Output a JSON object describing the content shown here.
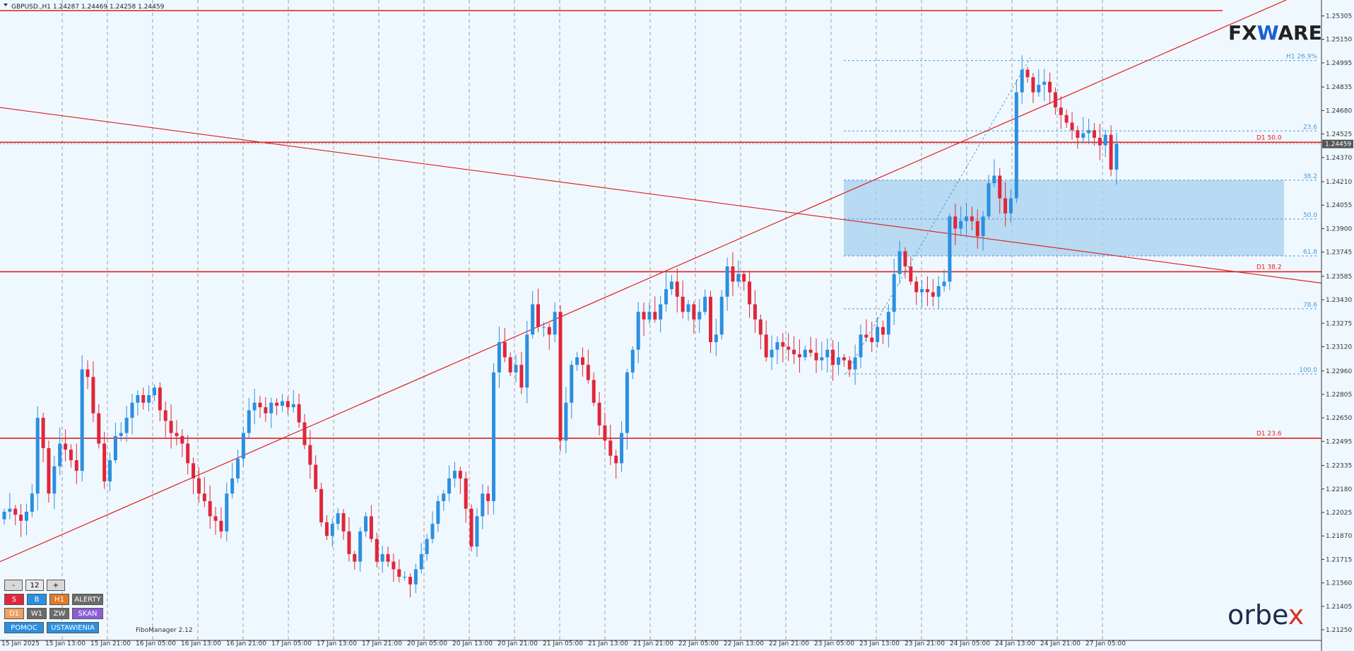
{
  "header": {
    "symbol_info": "GBPUSD.,H1  1.24287 1.24469 1.24258 1.24459"
  },
  "colors": {
    "bull": "#2b8fe0",
    "bear": "#e0263a",
    "line": "#e11d1d",
    "fib": "#4a9bd6",
    "zone": "#a6d0ee",
    "grid": "#8a8a8a",
    "bg": "#f0f8ff"
  },
  "chart_data": {
    "type": "candlestick",
    "price_axis": [
      "1.25305",
      "1.25150",
      "1.24995",
      "1.24835",
      "1.24680",
      "1.24525",
      "1.24370",
      "1.24210",
      "1.24055",
      "1.23900",
      "1.23745",
      "1.23585",
      "1.23430",
      "1.23275",
      "1.23120",
      "1.22960",
      "1.22805",
      "1.22650",
      "1.22495",
      "1.22335",
      "1.22180",
      "1.22025",
      "1.21870",
      "1.21715",
      "1.21560",
      "1.21405",
      "1.21250"
    ],
    "time_axis": [
      "15 Jan 2025",
      "15 Jan 13:00",
      "15 Jan 21:00",
      "16 Jan 05:00",
      "16 Jan 13:00",
      "16 Jan 21:00",
      "17 Jan 05:00",
      "17 Jan 13:00",
      "17 Jan 21:00",
      "20 Jan 05:00",
      "20 Jan 13:00",
      "20 Jan 21:00",
      "21 Jan 05:00",
      "21 Jan 13:00",
      "21 Jan 21:00",
      "22 Jan 05:00",
      "22 Jan 13:00",
      "22 Jan 21:00",
      "23 Jan 05:00",
      "23 Jan 13:00",
      "23 Jan 21:00",
      "24 Jan 05:00",
      "24 Jan 13:00",
      "24 Jan 21:00",
      "27 Jan 05:00"
    ],
    "current_price": "1.24459",
    "ylim": [
      1.2118,
      1.2541
    ],
    "closes": [
      1.2203,
      1.2205,
      1.2201,
      1.2197,
      1.2203,
      1.2215,
      1.2265,
      1.2245,
      1.2215,
      1.2233,
      1.2248,
      1.2244,
      1.2237,
      1.223,
      1.2297,
      1.2292,
      1.2268,
      1.2248,
      1.2223,
      1.2237,
      1.2253,
      1.2255,
      1.2265,
      1.2275,
      1.228,
      1.2275,
      1.228,
      1.2285,
      1.227,
      1.2263,
      1.2255,
      1.2253,
      1.2248,
      1.2235,
      1.2225,
      1.2215,
      1.221,
      1.22,
      1.2197,
      1.219,
      1.2215,
      1.2225,
      1.2238,
      1.2255,
      1.227,
      1.2275,
      1.2272,
      1.2268,
      1.2275,
      1.2273,
      1.2276,
      1.2272,
      1.2274,
      1.2262,
      1.2247,
      1.2234,
      1.2218,
      1.2196,
      1.2187,
      1.2195,
      1.2202,
      1.219,
      1.2175,
      1.217,
      1.219,
      1.22,
      1.2185,
      1.217,
      1.2175,
      1.217,
      1.2165,
      1.216,
      1.216,
      1.2155,
      1.2165,
      1.2175,
      1.2185,
      1.2195,
      1.221,
      1.2215,
      1.2225,
      1.223,
      1.2225,
      1.2205,
      1.218,
      1.22,
      1.2215,
      1.221,
      1.2295,
      1.2315,
      1.2305,
      1.2295,
      1.23,
      1.2285,
      1.232,
      1.234,
      1.2325,
      1.2325,
      1.232,
      1.2335,
      1.225,
      1.2275,
      1.23,
      1.2305,
      1.23,
      1.229,
      1.2275,
      1.226,
      1.225,
      1.224,
      1.2235,
      1.2255,
      1.2295,
      1.231,
      1.2335,
      1.233,
      1.2335,
      1.233,
      1.234,
      1.235,
      1.2355,
      1.2345,
      1.2335,
      1.234,
      1.233,
      1.2335,
      1.2345,
      1.2315,
      1.232,
      1.2345,
      1.2365,
      1.2355,
      1.236,
      1.2355,
      1.234,
      1.233,
      1.232,
      1.2305,
      1.231,
      1.2315,
      1.2312,
      1.231,
      1.2307,
      1.2305,
      1.231,
      1.2308,
      1.2303,
      1.2305,
      1.231,
      1.23,
      1.2305,
      1.2303,
      1.2297,
      1.2305,
      1.232,
      1.2318,
      1.2315,
      1.2325,
      1.232,
      1.2335,
      1.236,
      1.2375,
      1.2365,
      1.2355,
      1.2348,
      1.235,
      1.2348,
      1.2345,
      1.2352,
      1.2355,
      1.2398,
      1.239,
      1.2395,
      1.2398,
      1.2395,
      1.2385,
      1.2398,
      1.242,
      1.2425,
      1.241,
      1.24,
      1.241,
      1.248,
      1.2495,
      1.249,
      1.248,
      1.2485,
      1.2487,
      1.248,
      1.247,
      1.2465,
      1.246,
      1.2455,
      1.245,
      1.2453,
      1.2455,
      1.245,
      1.2445,
      1.2452,
      1.2429,
      1.2446
    ]
  },
  "levels": [
    {
      "label": "",
      "price": 1.2534
    },
    {
      "label": "D1 50.0",
      "price": 1.2447
    },
    {
      "label": "D1 38.2",
      "price": 1.23615
    },
    {
      "label": "D1 23.6",
      "price": 1.22515
    }
  ],
  "fib_levels": [
    {
      "label": "H1 26.9%",
      "price": 1.2501
    },
    {
      "label": "23.6",
      "price": 1.24545
    },
    {
      "label": "38.2",
      "price": 1.2422
    },
    {
      "label": "50.0",
      "price": 1.23963
    },
    {
      "label": "61.8",
      "price": 1.2372
    },
    {
      "label": "78.6",
      "price": 1.2337
    },
    {
      "label": "100.0",
      "price": 1.2294
    }
  ],
  "zone": {
    "high": 1.2422,
    "low": 1.2372
  },
  "panel": {
    "zoom": {
      "minus": "-",
      "value": "12",
      "plus": "+"
    },
    "row1": [
      "S",
      "B",
      "H1",
      "ALERTY"
    ],
    "row2": [
      "D1",
      "W1",
      "ZW",
      "SKAN"
    ],
    "row3": [
      "POMOC",
      "USTAWIENIA"
    ]
  },
  "fibomanager": "FiboManager 2.12",
  "logos": {
    "fx_left": "FX",
    "fx_mid": "W",
    "fx_right": "ARE",
    "orbex_left": "orbe",
    "orbex_x": "x"
  }
}
